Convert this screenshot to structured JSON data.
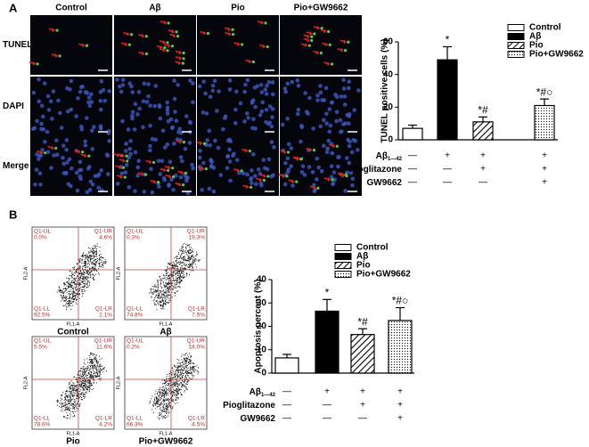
{
  "panel_labels": [
    "A",
    "B"
  ],
  "micrographs": {
    "columns": [
      "Control",
      "Aβ",
      "Pio",
      "Pio+GW9662"
    ],
    "rows": [
      "TUNEL",
      "DAPI",
      "Merge"
    ]
  },
  "flow": {
    "y_axis": "FL2-A",
    "x_axis": "FL1-A",
    "plots": [
      {
        "title": "Control",
        "UL": "Q1-UL",
        "UL_pct": "0.0%",
        "UR": "Q1-UR",
        "UR_pct": "4.6%",
        "LL": "Q1-LL",
        "LL_pct": "92.5%",
        "LR": "Q1-LR",
        "LR_pct": "2.1%"
      },
      {
        "title": "Aβ",
        "UL": "Q1-UL",
        "UL_pct": "0.3%",
        "UR": "Q1-UR",
        "UR_pct": "19.3%",
        "LL": "Q1-LL",
        "LL_pct": "74.8%",
        "LR": "Q1-LR",
        "LR_pct": "7.5%"
      },
      {
        "title": "Pio",
        "UL": "Q1-UL",
        "UL_pct": "5.5%",
        "UR": "Q1-UR",
        "UR_pct": "11.6%",
        "LL": "Q1-LL",
        "LL_pct": "78.6%",
        "LR": "Q1-LR",
        "LR_pct": "4.2%"
      },
      {
        "title": "Pio+GW9662",
        "UL": "Q1-UL",
        "UL_pct": "0.2%",
        "UR": "Q1-UR",
        "UR_pct": "18.0%",
        "LL": "Q1-LL",
        "LL_pct": "66.3%",
        "LR": "Q1-LR",
        "LR_pct": "4.5%"
      }
    ]
  },
  "chart_data": [
    {
      "type": "bar",
      "y_label": "TUNEL positive cells (%)",
      "categories": [
        "Control",
        "Aβ",
        "Pio",
        "Pio+GW9662"
      ],
      "values": [
        7,
        49,
        11,
        21
      ],
      "errors": [
        2,
        8,
        3,
        4
      ],
      "fills": [
        "white",
        "black",
        "hatch",
        "dots"
      ],
      "annotations": [
        null,
        "*",
        "*#",
        "*#○"
      ],
      "ylim": [
        0,
        60
      ],
      "yticks": [
        0,
        20,
        40,
        60
      ],
      "treatments": [
        {
          "label": "Aβ",
          "sub": "1—42",
          "signs": [
            "—",
            "+",
            "+",
            "+"
          ]
        },
        {
          "label": "Pioglitazone",
          "signs": [
            "—",
            "—",
            "+",
            "+"
          ]
        },
        {
          "label": "GW9662",
          "signs": [
            "—",
            "—",
            "—",
            "+"
          ]
        }
      ]
    },
    {
      "type": "bar",
      "y_label": "Apoptosis percent (%)",
      "categories": [
        "Control",
        "Aβ",
        "Pio",
        "Pio+GW9662"
      ],
      "values": [
        6.5,
        26.5,
        16.5,
        22.5
      ],
      "errors": [
        1.5,
        5,
        2.5,
        5.5
      ],
      "fills": [
        "white",
        "black",
        "hatch",
        "dots"
      ],
      "annotations": [
        null,
        "*",
        "*#",
        "*#○"
      ],
      "ylim": [
        0,
        40
      ],
      "yticks": [
        0,
        10,
        20,
        30,
        40
      ],
      "treatments": [
        {
          "label": "Aβ",
          "sub": "1—42",
          "signs": [
            "—",
            "+",
            "+",
            "+"
          ]
        },
        {
          "label": "Pioglitazone",
          "signs": [
            "—",
            "—",
            "+",
            "+"
          ]
        },
        {
          "label": "GW9662",
          "signs": [
            "—",
            "—",
            "—",
            "+"
          ]
        }
      ]
    }
  ]
}
